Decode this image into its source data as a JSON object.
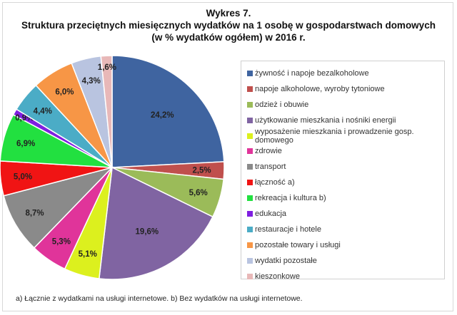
{
  "chart_data": {
    "type": "pie",
    "title": [
      "Wykres 7.",
      "Struktura przeciętnych miesięcznych wydatków na 1 osobę w gospodarstwach domowych",
      "(w % wydatków ogółem) w 2016 r."
    ],
    "start": "12 o'clock, clockwise",
    "legend_position": "right",
    "slices": [
      {
        "name": "żywność i napoje bezalkoholowe",
        "value": 24.2,
        "label": "24,2%",
        "color": "#3f64a0"
      },
      {
        "name": "napoje alkoholowe, wyroby tytoniowe",
        "value": 2.5,
        "label": "2,5%",
        "color": "#c0504d"
      },
      {
        "name": "odzież i obuwie",
        "value": 5.6,
        "label": "5,6%",
        "color": "#9bbb59"
      },
      {
        "name": "użytkowanie mieszkania i nośniki energii",
        "value": 19.6,
        "label": "19,6%",
        "color": "#8064a2"
      },
      {
        "name": "wyposażenie mieszkania i prowadzenie gosp. domowego",
        "value": 5.1,
        "label": "5,1%",
        "color": "#dcf01e"
      },
      {
        "name": "zdrowie",
        "value": 5.3,
        "label": "5,3%",
        "color": "#e0349a"
      },
      {
        "name": "transport",
        "value": 8.7,
        "label": "8,7%",
        "color": "#8a8a8a"
      },
      {
        "name": "łączność a)",
        "value": 5.0,
        "label": "5,0%",
        "color": "#f01414"
      },
      {
        "name": "rekreacja i kultura b)",
        "value": 6.9,
        "label": "6,9%",
        "color": "#22e040"
      },
      {
        "name": "edukacja",
        "value": 0.9,
        "label": "0,9%",
        "color": "#7f1fe0"
      },
      {
        "name": "restauracje i hotele",
        "value": 4.4,
        "label": "4,4%",
        "color": "#4bacc6"
      },
      {
        "name": "pozostałe towary i usługi",
        "value": 6.0,
        "label": "6,0%",
        "color": "#f79646"
      },
      {
        "name": "wydatki pozostałe",
        "value": 4.3,
        "label": "4,3%",
        "color": "#b9c4e0"
      },
      {
        "name": "kieszonkowe",
        "value": 1.6,
        "label": "1,6%",
        "color": "#e8b8b8"
      }
    ]
  },
  "footnote": "a) Łącznie z wydatkami na usługi internetowe. b) Bez wydatków na usługi internetowe."
}
